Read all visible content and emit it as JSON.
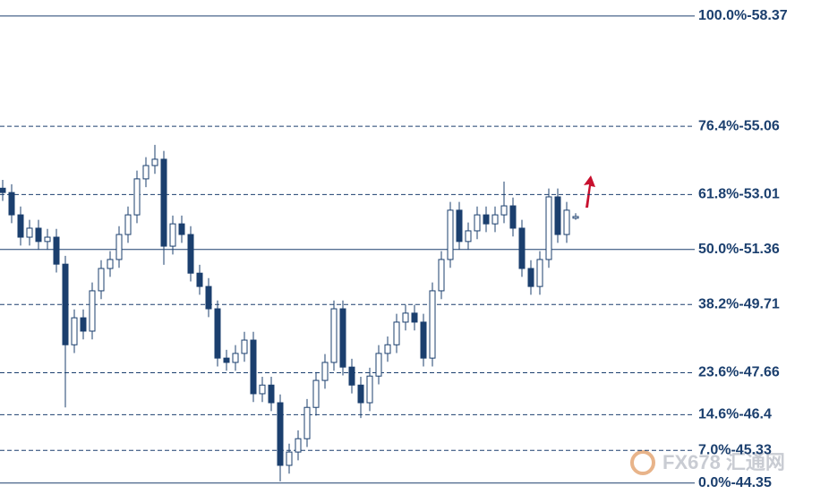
{
  "chart_data": {
    "type": "candlestick",
    "ylim": [
      44.02,
      58.85
    ],
    "yticks": [
      {
        "value": 58.37,
        "label": "100.0%-58.37"
      },
      {
        "value": 55.06,
        "label": "76.4%-55.06"
      },
      {
        "value": 53.01,
        "label": "61.8%-53.01"
      },
      {
        "value": 51.36,
        "label": "50.0%-51.36"
      },
      {
        "value": 49.71,
        "label": "38.2%-49.71"
      },
      {
        "value": 47.66,
        "label": "23.6%-47.66"
      },
      {
        "value": 46.4,
        "label": "14.6%-46.4"
      },
      {
        "value": 45.33,
        "label": "7.0%-45.33"
      },
      {
        "value": 44.35,
        "label": "0.0%-44.35"
      }
    ],
    "tick_styles": [
      "solid",
      "dashed",
      "dashed",
      "solid",
      "dashed",
      "dashed",
      "dashed",
      "dashed",
      "solid"
    ],
    "grid": true,
    "up_color": "#ffffff",
    "down_color": "#1b3f6e",
    "line_color": "#1b3f6e",
    "watermark": "FX678 汇通网",
    "series": [
      {
        "open": [
          53.2,
          53.07,
          52.4,
          51.73,
          52.0,
          51.6,
          51.73,
          50.92,
          48.5,
          49.31,
          48.91,
          50.12,
          50.79,
          51.06,
          51.81,
          52.4,
          53.48,
          53.88,
          54.07,
          51.46,
          52.13,
          51.81,
          50.65,
          50.25,
          49.58,
          48.1,
          47.97,
          48.24,
          48.64,
          47.03,
          47.29,
          46.76,
          44.88,
          45.28,
          45.68,
          46.62,
          47.43,
          47.97,
          49.58,
          47.83,
          47.29,
          46.76,
          47.56,
          48.24,
          48.5,
          49.18,
          49.45,
          49.18,
          48.1,
          50.12,
          51.06,
          52.54,
          51.6,
          51.92,
          52.4,
          52.13,
          52.4,
          52.67,
          52.0,
          50.79,
          50.25,
          51.06,
          52.94,
          51.81,
          52.3
        ],
        "high": [
          53.45,
          53.32,
          52.65,
          52.25,
          52.25,
          51.98,
          51.98,
          51.17,
          49.56,
          49.56,
          50.37,
          51.04,
          51.31,
          52.06,
          52.65,
          53.73,
          54.13,
          54.5,
          54.32,
          52.38,
          52.38,
          52.06,
          50.9,
          50.5,
          49.83,
          48.35,
          48.49,
          48.89,
          48.89,
          47.54,
          47.54,
          47.01,
          45.53,
          45.93,
          46.87,
          47.68,
          48.22,
          49.83,
          49.83,
          48.08,
          47.54,
          47.81,
          48.49,
          48.75,
          49.43,
          49.7,
          49.7,
          49.43,
          50.37,
          51.31,
          52.79,
          52.79,
          52.17,
          52.65,
          52.65,
          52.65,
          53.4,
          52.92,
          52.25,
          51.04,
          51.31,
          53.19,
          53.19,
          52.79,
          52.45
        ],
        "low": [
          52.82,
          52.15,
          51.48,
          51.48,
          51.35,
          51.35,
          50.67,
          46.62,
          48.25,
          48.66,
          48.66,
          49.87,
          50.54,
          50.81,
          51.56,
          52.15,
          53.23,
          53.63,
          50.9,
          51.21,
          51.56,
          50.4,
          50.0,
          49.33,
          47.85,
          47.72,
          47.72,
          47.99,
          46.78,
          46.78,
          46.51,
          44.4,
          44.63,
          45.03,
          45.43,
          46.37,
          47.18,
          47.72,
          47.58,
          47.04,
          46.3,
          46.51,
          47.31,
          47.99,
          48.25,
          48.93,
          48.93,
          47.85,
          47.85,
          49.87,
          50.81,
          51.35,
          51.35,
          51.67,
          51.88,
          51.88,
          52.15,
          51.75,
          50.54,
          50.0,
          50.0,
          50.81,
          51.56,
          51.56,
          52.25
        ],
        "close": [
          53.07,
          52.4,
          51.73,
          52.0,
          51.6,
          51.73,
          50.92,
          48.5,
          49.31,
          48.91,
          50.12,
          50.79,
          51.06,
          51.81,
          52.4,
          53.48,
          53.88,
          54.07,
          51.46,
          52.13,
          51.81,
          50.65,
          50.25,
          49.58,
          48.1,
          47.97,
          48.24,
          48.64,
          47.03,
          47.29,
          46.76,
          44.88,
          45.28,
          45.68,
          46.62,
          47.43,
          47.97,
          49.58,
          47.83,
          47.29,
          46.76,
          47.56,
          48.24,
          48.5,
          49.18,
          49.45,
          49.18,
          48.1,
          50.12,
          51.06,
          52.54,
          51.6,
          51.92,
          52.4,
          52.13,
          52.4,
          52.67,
          52.0,
          50.79,
          50.25,
          51.06,
          52.94,
          51.81,
          52.54,
          52.35
        ]
      }
    ]
  }
}
